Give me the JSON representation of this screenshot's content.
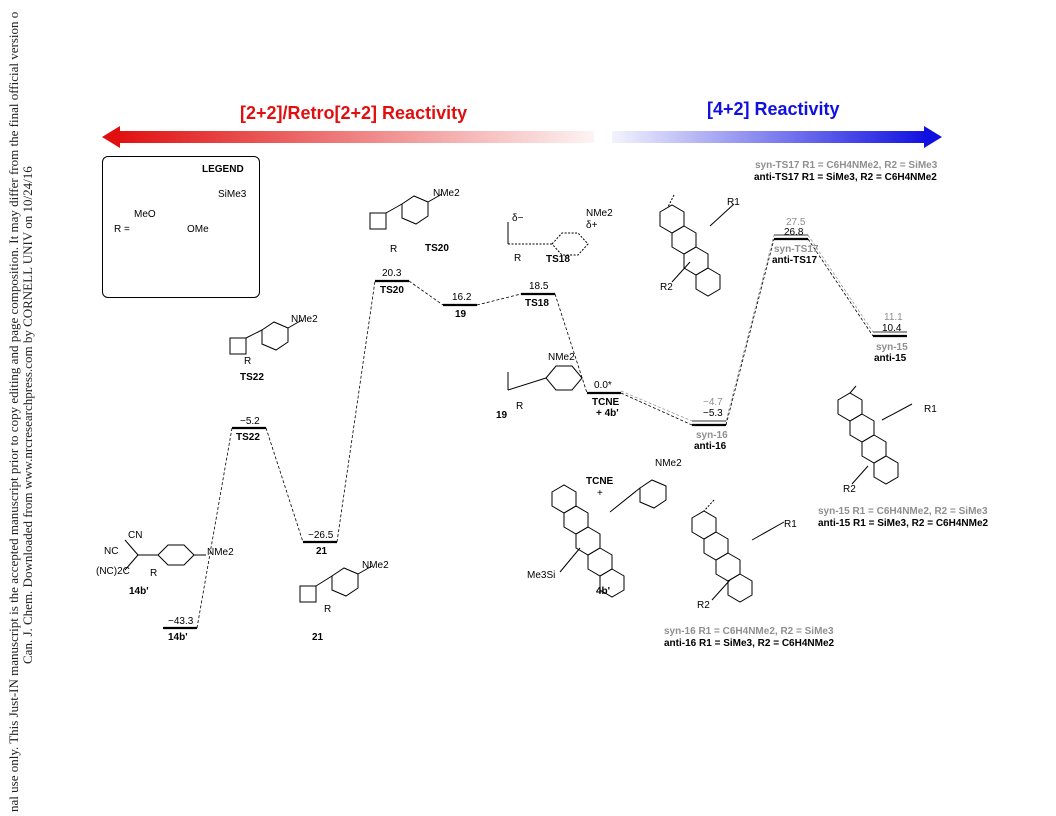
{
  "sidebar": {
    "line1": "Can. J. Chem. Downloaded from www.nrcresearchpress.com by CORNELL UNIV on 10/24/16",
    "line2": "nal use only. This Just-IN manuscript is the accepted manuscript prior to copy editing and page composition. It may differ from the final official version o"
  },
  "sections": {
    "left_title": "[2+2]/Retro[2+2] Reactivity",
    "right_title": "[4+2] Reactivity",
    "left_color": "#e11010",
    "right_color": "#1010e0"
  },
  "legend": {
    "title": "LEGEND",
    "r_label": "R =",
    "sime3": "SiMe3",
    "meo": "MeO",
    "ome": "OMe"
  },
  "levels": [
    {
      "name": "14b'",
      "energy": "−43.3"
    },
    {
      "name": "TS22",
      "energy": "−5.2"
    },
    {
      "name": "21",
      "energy": "−26.5"
    },
    {
      "name": "TS20",
      "energy": "20.3"
    },
    {
      "name": "19",
      "energy": "16.2"
    },
    {
      "name": "TS18",
      "energy": "18.5"
    },
    {
      "name": "TCNE",
      "name2": "+ 4b'",
      "energy": "0.0*"
    },
    {
      "name": "syn-16",
      "name2": "anti-16",
      "energy_syn": "−4.7",
      "energy_anti": "−5.3"
    },
    {
      "name": "syn-TS17",
      "name2": "anti-TS17",
      "energy_syn": "27.5",
      "energy_anti": "26.8"
    },
    {
      "name": "syn-15",
      "name2": "anti-15",
      "energy_syn": "11.1",
      "energy_anti": "10.4"
    }
  ],
  "captions": {
    "syn_ts17": "syn-TS17 R1 = C6H4NMe2, R2 = SiMe3",
    "anti_ts17": "anti-TS17 R1 = SiMe3, R2 = C6H4NMe2",
    "syn_15": "syn-15 R1 = C6H4NMe2, R2 = SiMe3",
    "anti_15": "anti-15 R1 = SiMe3, R2 = C6H4NMe2",
    "syn_16": "syn-16 R1 = C6H4NMe2, R2 = SiMe3",
    "anti_16": "anti-16 R1 = SiMe3, R2 = C6H4NMe2"
  },
  "structures": {
    "s14": "14b'",
    "sTS22": "TS22",
    "s21": "21",
    "sTS20": "TS20",
    "sTS18": "TS18",
    "s19": "19",
    "sTCNE": "TCNE",
    "plus": "+",
    "s4b": "4b'",
    "cn": "CN",
    "nc": "NC",
    "nme2": "NMe2",
    "r": "R",
    "nc2c": "(NC)2C",
    "me3si": "Me3Si",
    "r1": "R1",
    "r2": "R2",
    "delta_minus": "δ−",
    "delta_plus": "δ+"
  }
}
